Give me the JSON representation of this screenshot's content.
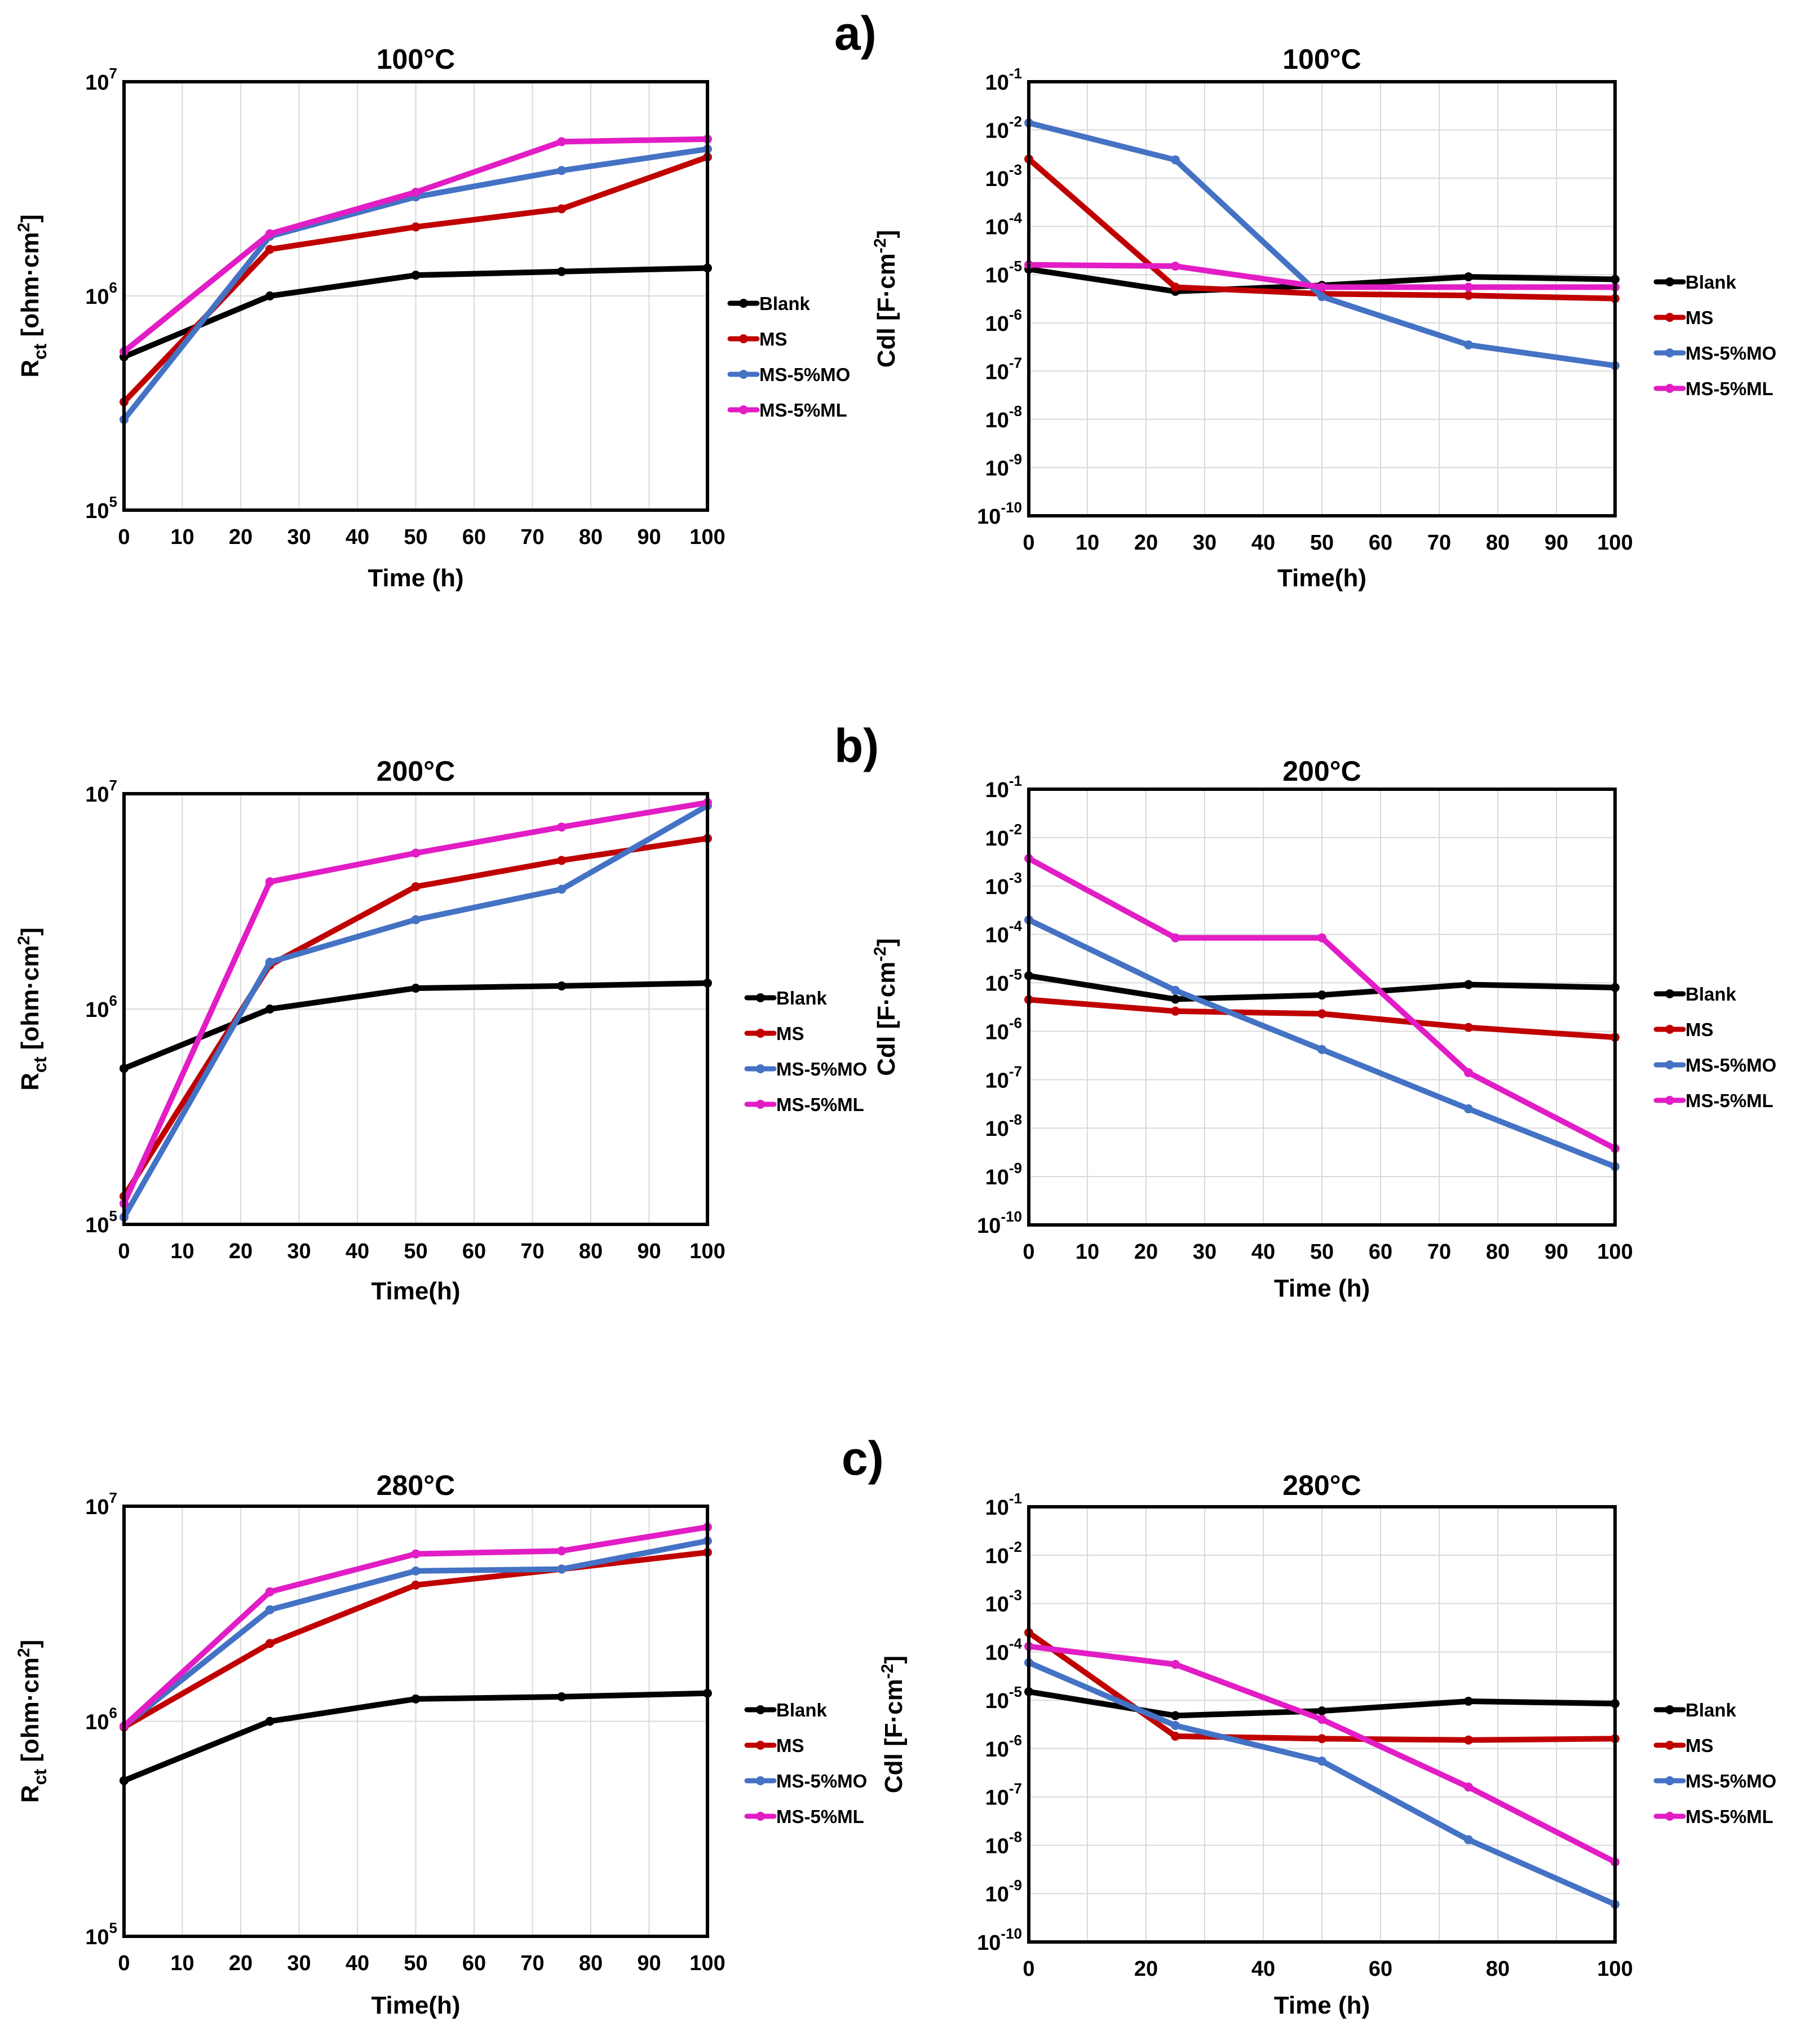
{
  "panel_labels": [
    "a)",
    "b)",
    "c)"
  ],
  "series_colors": {
    "Blank": "#000000",
    "MS": "#c00000",
    "MS-5%MO": "#4472c4",
    "MS-5%ML": "#e21dc5"
  },
  "chart_data": [
    {
      "type": "line",
      "title": "100°C",
      "xlabel": "Time (h)",
      "ylabel_main": "R",
      "ylabel_sub": "ct",
      "ylabel_rest": " [ohm·cm",
      "ylabel_sup": "2",
      "ylabel_end": "]",
      "yscale": "log",
      "ylim_exp": [
        5,
        7
      ],
      "y_ticks": [
        {
          "base": "10",
          "exp": "7"
        },
        {
          "base": "10",
          "exp": "6"
        },
        {
          "base": "10",
          "exp": "5"
        }
      ],
      "x_ticks": [
        "0",
        "10",
        "20",
        "30",
        "40",
        "50",
        "60",
        "70",
        "80",
        "90",
        "100"
      ],
      "xlim": [
        0,
        100
      ],
      "x": [
        0,
        25,
        50,
        75,
        100
      ],
      "series": [
        {
          "name": "Blank",
          "values": [
            520000,
            1000000,
            1250000,
            1300000,
            1350000
          ]
        },
        {
          "name": "MS",
          "values": [
            320000,
            1650000,
            2100000,
            2550000,
            4450000
          ]
        },
        {
          "name": "MS-5%MO",
          "values": [
            265000,
            1900000,
            2900000,
            3850000,
            4850000
          ]
        },
        {
          "name": "MS-5%ML",
          "values": [
            550000,
            1950000,
            3050000,
            5250000,
            5400000
          ]
        }
      ]
    },
    {
      "type": "line",
      "title": "100°C",
      "xlabel": "Time(h)",
      "ylabel_main": "Cdl [F·cm",
      "ylabel_sup": "-2",
      "ylabel_end": "]",
      "yscale": "log",
      "ylim_exp": [
        -10,
        -1
      ],
      "y_ticks": [
        {
          "base": "10",
          "exp": "-1"
        },
        {
          "base": "10",
          "exp": "-2"
        },
        {
          "base": "10",
          "exp": "-3"
        },
        {
          "base": "10",
          "exp": "-4"
        },
        {
          "base": "10",
          "exp": "-5"
        },
        {
          "base": "10",
          "exp": "-6"
        },
        {
          "base": "10",
          "exp": "-7"
        },
        {
          "base": "10",
          "exp": "-8"
        },
        {
          "base": "10",
          "exp": "-9"
        },
        {
          "base": "10",
          "exp": "-10"
        }
      ],
      "x_ticks": [
        "0",
        "10",
        "20",
        "30",
        "40",
        "50",
        "60",
        "70",
        "80",
        "90",
        "100"
      ],
      "xlim": [
        0,
        100
      ],
      "x": [
        0,
        25,
        50,
        75,
        100
      ],
      "series": [
        {
          "name": "Blank",
          "values": [
            1.3e-05,
            4.5e-06,
            6e-06,
            9e-06,
            8e-06
          ]
        },
        {
          "name": "MS",
          "values": [
            0.0025,
            5.5e-06,
            4e-06,
            3.7e-06,
            3.2e-06
          ]
        },
        {
          "name": "MS-5%MO",
          "values": [
            0.014,
            0.0024,
            3.5e-06,
            3.5e-07,
            1.3e-07
          ]
        },
        {
          "name": "MS-5%ML",
          "values": [
            1.6e-05,
            1.5e-05,
            5.5e-06,
            5.5e-06,
            5.5e-06
          ]
        }
      ]
    },
    {
      "type": "line",
      "title": "200°C",
      "xlabel": "Time(h)",
      "ylabel_main": "R",
      "ylabel_sub": "ct",
      "ylabel_rest": " [ohm·cm",
      "ylabel_sup": "2",
      "ylabel_end": "]",
      "yscale": "log",
      "ylim_exp": [
        5,
        7
      ],
      "y_ticks": [
        {
          "base": "10",
          "exp": "7"
        },
        {
          "base": "10",
          "exp": "6"
        },
        {
          "base": "10",
          "exp": "5"
        }
      ],
      "x_ticks": [
        "0",
        "10",
        "20",
        "30",
        "40",
        "50",
        "60",
        "70",
        "80",
        "90",
        "100"
      ],
      "xlim": [
        0,
        100
      ],
      "x": [
        0,
        25,
        50,
        75,
        100
      ],
      "series": [
        {
          "name": "Blank",
          "values": [
            530000,
            1000000,
            1250000,
            1280000,
            1320000
          ]
        },
        {
          "name": "MS",
          "values": [
            135000,
            1600000,
            3700000,
            4900000,
            6200000
          ]
        },
        {
          "name": "MS-5%MO",
          "values": [
            108000,
            1650000,
            2600000,
            3600000,
            8800000
          ]
        },
        {
          "name": "MS-5%ML",
          "values": [
            125000,
            3900000,
            5300000,
            7000000,
            9100000
          ]
        }
      ]
    },
    {
      "type": "line",
      "title": "200°C",
      "xlabel": "Time (h)",
      "ylabel_main": "Cdl [F·cm",
      "ylabel_sup": "-2",
      "ylabel_end": "]",
      "yscale": "log",
      "ylim_exp": [
        -10,
        -1
      ],
      "y_ticks": [
        {
          "base": "10",
          "exp": "-1"
        },
        {
          "base": "10",
          "exp": "-2"
        },
        {
          "base": "10",
          "exp": "-3"
        },
        {
          "base": "10",
          "exp": "-4"
        },
        {
          "base": "10",
          "exp": "-5"
        },
        {
          "base": "10",
          "exp": "-6"
        },
        {
          "base": "10",
          "exp": "-7"
        },
        {
          "base": "10",
          "exp": "-8"
        },
        {
          "base": "10",
          "exp": "-9"
        },
        {
          "base": "10",
          "exp": "-10"
        }
      ],
      "x_ticks": [
        "0",
        "10",
        "20",
        "30",
        "40",
        "50",
        "60",
        "70",
        "80",
        "90",
        "100"
      ],
      "xlim": [
        0,
        100
      ],
      "x": [
        0,
        25,
        50,
        75,
        100
      ],
      "series": [
        {
          "name": "Blank",
          "values": [
            1.4e-05,
            4.6e-06,
            5.6e-06,
            9.2e-06,
            8e-06
          ]
        },
        {
          "name": "MS",
          "values": [
            4.5e-06,
            2.6e-06,
            2.3e-06,
            1.2e-06,
            7.5e-07
          ]
        },
        {
          "name": "MS-5%MO",
          "values": [
            0.0002,
            7e-06,
            4.2e-07,
            2.5e-08,
            1.6e-09
          ]
        },
        {
          "name": "MS-5%ML",
          "values": [
            0.0037,
            8.5e-05,
            8.5e-05,
            1.4e-07,
            3.8e-09
          ]
        }
      ]
    },
    {
      "type": "line",
      "title": "280°C",
      "xlabel": "Time(h)",
      "ylabel_main": "R",
      "ylabel_sub": "ct",
      "ylabel_rest": " [ohm·cm",
      "ylabel_sup": "2",
      "ylabel_end": "]",
      "yscale": "log",
      "ylim_exp": [
        5,
        7
      ],
      "y_ticks": [
        {
          "base": "10",
          "exp": "7"
        },
        {
          "base": "10",
          "exp": "6"
        },
        {
          "base": "10",
          "exp": "5"
        }
      ],
      "x_ticks": [
        "0",
        "10",
        "20",
        "30",
        "40",
        "50",
        "60",
        "70",
        "80",
        "90",
        "100"
      ],
      "xlim": [
        0,
        100
      ],
      "x": [
        0,
        25,
        50,
        75,
        100
      ],
      "series": [
        {
          "name": "Blank",
          "values": [
            530000,
            1000000,
            1270000,
            1300000,
            1350000
          ]
        },
        {
          "name": "MS",
          "values": [
            940000,
            2300000,
            4300000,
            5100000,
            6100000
          ]
        },
        {
          "name": "MS-5%MO",
          "values": [
            950000,
            3300000,
            5000000,
            5100000,
            6900000
          ]
        },
        {
          "name": "MS-5%ML",
          "values": [
            950000,
            4000000,
            6000000,
            6200000,
            8000000
          ]
        }
      ]
    },
    {
      "type": "line",
      "title": "280°C",
      "xlabel": "Time (h)",
      "ylabel_main": "Cdl [F·cm",
      "ylabel_sup": "-2",
      "ylabel_end": "]",
      "yscale": "log",
      "ylim_exp": [
        -10,
        -1
      ],
      "y_ticks": [
        {
          "base": "10",
          "exp": "-1"
        },
        {
          "base": "10",
          "exp": "-2"
        },
        {
          "base": "10",
          "exp": "-3"
        },
        {
          "base": "10",
          "exp": "-4"
        },
        {
          "base": "10",
          "exp": "-5"
        },
        {
          "base": "10",
          "exp": "-6"
        },
        {
          "base": "10",
          "exp": "-7"
        },
        {
          "base": "10",
          "exp": "-8"
        },
        {
          "base": "10",
          "exp": "-9"
        },
        {
          "base": "10",
          "exp": "-10"
        }
      ],
      "x_ticks": [
        "0",
        "20",
        "40",
        "60",
        "80",
        "100"
      ],
      "xlim": [
        0,
        100
      ],
      "x": [
        0,
        25,
        50,
        75,
        100
      ],
      "series": [
        {
          "name": "Blank",
          "values": [
            1.5e-05,
            4.8e-06,
            6e-06,
            9.5e-06,
            8.5e-06
          ]
        },
        {
          "name": "MS",
          "values": [
            0.00025,
            1.8e-06,
            1.6e-06,
            1.5e-06,
            1.6e-06
          ]
        },
        {
          "name": "MS-5%MO",
          "values": [
            6e-05,
            3e-06,
            5.5e-07,
            1.3e-08,
            6e-10
          ]
        },
        {
          "name": "MS-5%ML",
          "values": [
            0.00013,
            5.5e-05,
            4e-06,
            1.6e-07,
            4.5e-09
          ]
        }
      ]
    }
  ]
}
